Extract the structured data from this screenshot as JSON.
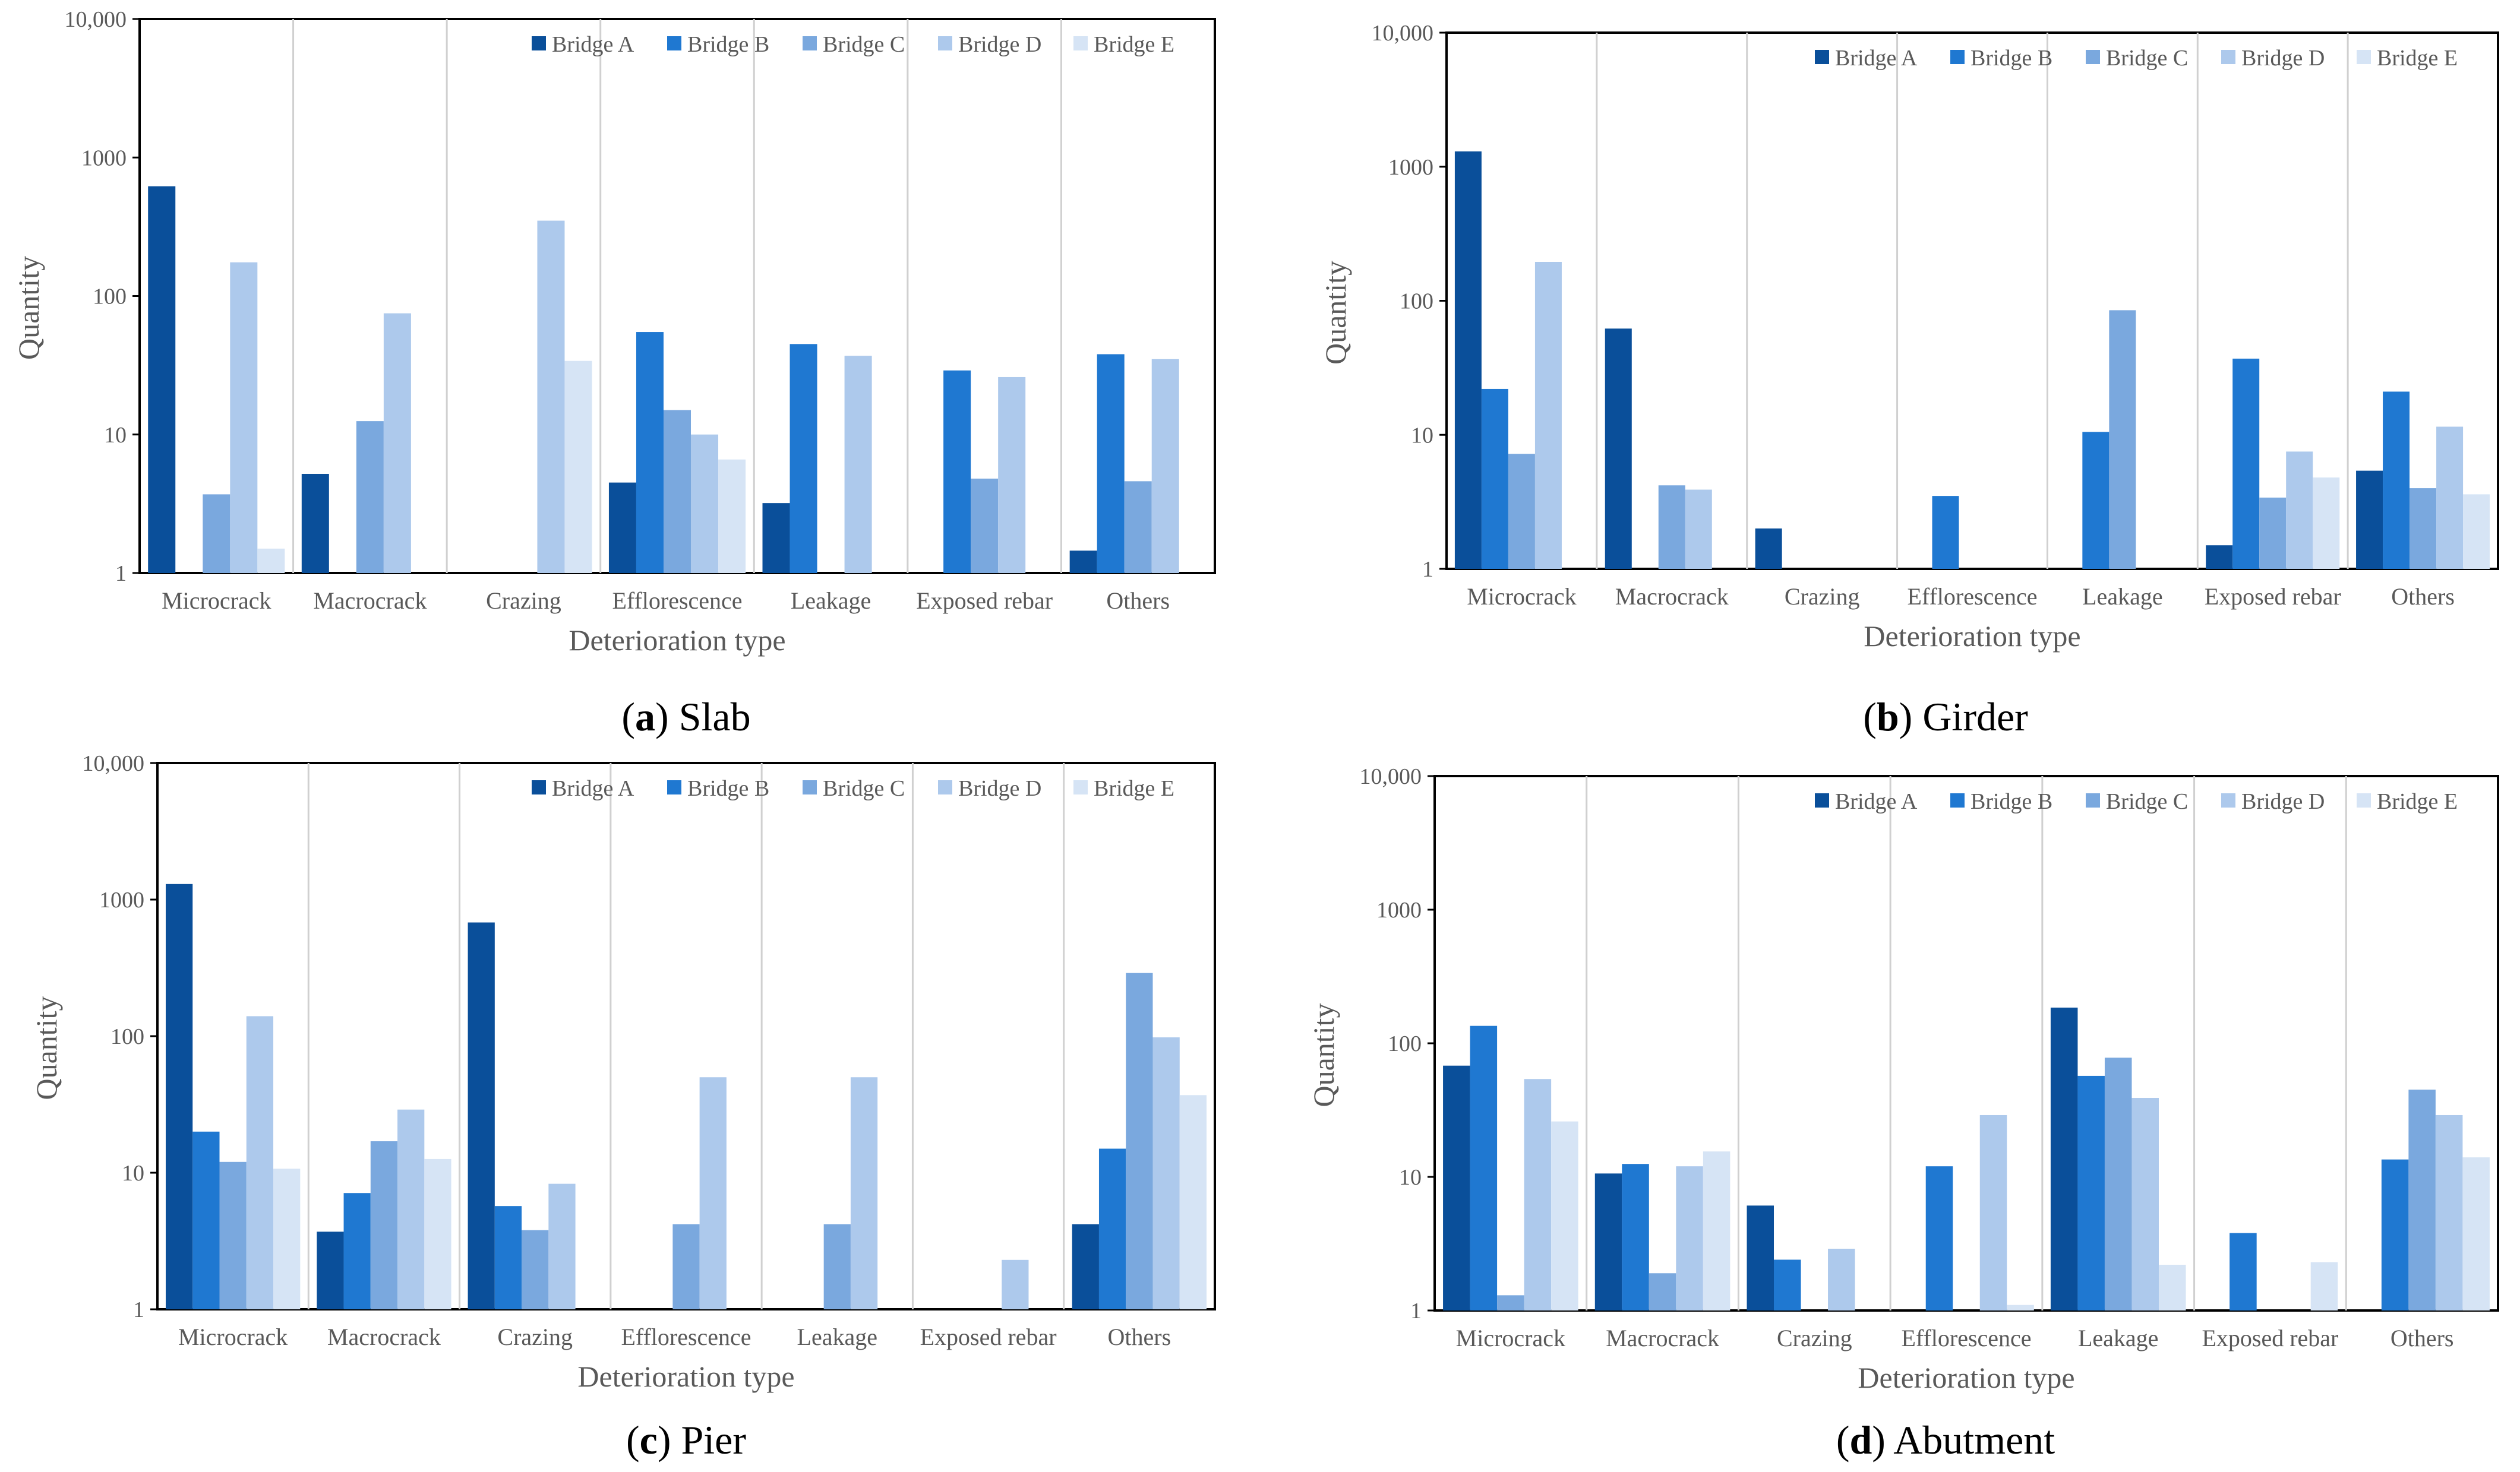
{
  "series_colors": [
    "#0a4f9a",
    "#1f78d1",
    "#7aa8de",
    "#adc9ec",
    "#d6e4f5"
  ],
  "legend": [
    "Bridge A",
    "Bridge B",
    "Bridge C",
    "Bridge D",
    "Bridge E"
  ],
  "panels": [
    {
      "letter": "a",
      "name": "Slab"
    },
    {
      "letter": "b",
      "name": "Girder"
    },
    {
      "letter": "c",
      "name": "Pier"
    },
    {
      "letter": "d",
      "name": "Abutment"
    }
  ],
  "chart_data": [
    {
      "type": "bar",
      "title": "Slab",
      "xlabel": "Deterioration type",
      "ylabel": "Quantity",
      "yscale": "log",
      "ylim": [
        1,
        10000
      ],
      "yticks": [
        "1",
        "10",
        "100",
        "1000",
        "10,000"
      ],
      "legend_position": "top-right",
      "categories": [
        "Microcrack",
        "Macrocrack",
        "Crazing",
        "Efflorescence",
        "Leakage",
        "Exposed rebar",
        "Others"
      ],
      "series": [
        {
          "name": "Bridge A",
          "values": [
            620,
            5.2,
            null,
            4.5,
            3.2,
            null,
            1.45
          ]
        },
        {
          "name": "Bridge B",
          "values": [
            null,
            null,
            null,
            55,
            45,
            29,
            38
          ]
        },
        {
          "name": "Bridge C",
          "values": [
            3.7,
            12.5,
            null,
            15,
            null,
            4.8,
            4.6
          ]
        },
        {
          "name": "Bridge D",
          "values": [
            175,
            75,
            350,
            10,
            37,
            26,
            35
          ]
        },
        {
          "name": "Bridge E",
          "values": [
            1.5,
            null,
            34,
            6.6,
            null,
            null,
            null
          ]
        }
      ]
    },
    {
      "type": "bar",
      "title": "Girder",
      "xlabel": "Deterioration type",
      "ylabel": "Quantity",
      "yscale": "log",
      "ylim": [
        1,
        10000
      ],
      "yticks": [
        "1",
        "10",
        "100",
        "1000",
        "10,000"
      ],
      "legend_position": "top-right",
      "categories": [
        "Microcrack",
        "Macrocrack",
        "Crazing",
        "Efflorescence",
        "Leakage",
        "Exposed rebar",
        "Others"
      ],
      "series": [
        {
          "name": "Bridge A",
          "values": [
            1300,
            62,
            2.0,
            null,
            null,
            1.5,
            5.4
          ]
        },
        {
          "name": "Bridge B",
          "values": [
            22,
            null,
            null,
            3.5,
            10.5,
            37,
            21
          ]
        },
        {
          "name": "Bridge C",
          "values": [
            7.2,
            4.2,
            null,
            null,
            85,
            3.4,
            4.0
          ]
        },
        {
          "name": "Bridge D",
          "values": [
            195,
            3.9,
            null,
            null,
            null,
            7.5,
            11.5
          ]
        },
        {
          "name": "Bridge E",
          "values": [
            null,
            null,
            null,
            null,
            null,
            4.8,
            3.6
          ]
        }
      ]
    },
    {
      "type": "bar",
      "title": "Pier",
      "xlabel": "Deterioration type",
      "ylabel": "Quantity",
      "yscale": "log",
      "ylim": [
        1,
        10000
      ],
      "yticks": [
        "1",
        "10",
        "100",
        "1000",
        "10,000"
      ],
      "legend_position": "top-right",
      "categories": [
        "Microcrack",
        "Macrocrack",
        "Crazing",
        "Efflorescence",
        "Leakage",
        "Exposed rebar",
        "Others"
      ],
      "series": [
        {
          "name": "Bridge A",
          "values": [
            1300,
            3.7,
            680,
            null,
            null,
            null,
            4.2
          ]
        },
        {
          "name": "Bridge B",
          "values": [
            20,
            7.1,
            5.7,
            null,
            null,
            null,
            15
          ]
        },
        {
          "name": "Bridge C",
          "values": [
            12,
            17,
            3.8,
            4.2,
            4.2,
            null,
            290
          ]
        },
        {
          "name": "Bridge D",
          "values": [
            140,
            29,
            8.3,
            50,
            50,
            2.3,
            98
          ]
        },
        {
          "name": "Bridge E",
          "values": [
            10.7,
            12.6,
            null,
            null,
            null,
            null,
            37
          ]
        }
      ]
    },
    {
      "type": "bar",
      "title": "Abutment",
      "xlabel": "Deterioration type",
      "ylabel": "Quantity",
      "yscale": "log",
      "ylim": [
        1,
        10000
      ],
      "yticks": [
        "1",
        "10",
        "100",
        "1000",
        "10,000"
      ],
      "legend_position": "top-right",
      "categories": [
        "Microcrack",
        "Macrocrack",
        "Crazing",
        "Efflorescence",
        "Leakage",
        "Exposed rebar",
        "Others"
      ],
      "series": [
        {
          "name": "Bridge A",
          "values": [
            68,
            10.6,
            6.1,
            null,
            185,
            null,
            null
          ]
        },
        {
          "name": "Bridge B",
          "values": [
            135,
            12.5,
            2.4,
            12,
            57,
            3.8,
            13.5
          ]
        },
        {
          "name": "Bridge C",
          "values": [
            1.3,
            1.9,
            null,
            null,
            78,
            null,
            45
          ]
        },
        {
          "name": "Bridge D",
          "values": [
            54,
            12,
            2.9,
            29,
            39,
            null,
            29
          ]
        },
        {
          "name": "Bridge E",
          "values": [
            26,
            15.5,
            null,
            1.1,
            2.2,
            2.3,
            14
          ]
        }
      ]
    }
  ]
}
